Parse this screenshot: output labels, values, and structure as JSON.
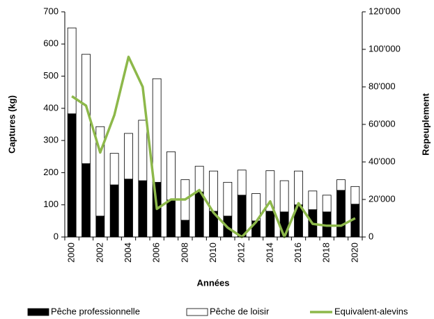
{
  "chart_data": {
    "type": "bar",
    "stacked": true,
    "xlabel": "Années",
    "ylabel": "Captures (kg)",
    "y2label": "Repeuplement",
    "categories": [
      "2000",
      null,
      "2002",
      null,
      "2004",
      null,
      "2006",
      null,
      "2008",
      null,
      "2010",
      null,
      "2012",
      null,
      "2014",
      null,
      "2016",
      null,
      "2018",
      null,
      "2020"
    ],
    "series": [
      {
        "name": "Pêche professionnelle",
        "color": "#000000",
        "type": "bar",
        "values": [
          383,
          228,
          65,
          162,
          180,
          175,
          170,
          115,
          52,
          140,
          80,
          65,
          130,
          50,
          80,
          78,
          100,
          85,
          78,
          145,
          102
        ]
      },
      {
        "name": "Pêche de loisir",
        "color": "#ffffff",
        "type": "bar",
        "values": [
          267,
          340,
          278,
          98,
          142,
          188,
          322,
          150,
          126,
          80,
          125,
          105,
          78,
          85,
          126,
          97,
          105,
          58,
          52,
          33,
          55
        ]
      },
      {
        "name": "Equivalent-alevins",
        "color": "#8db84a",
        "type": "line",
        "axis": "y2",
        "values": [
          75000,
          70000,
          45000,
          65000,
          96000,
          80000,
          15000,
          20000,
          20000,
          25000,
          13000,
          5000,
          0,
          8000,
          19000,
          0,
          18000,
          7000,
          6000,
          6000,
          10000
        ]
      }
    ],
    "ylim": [
      0,
      700
    ],
    "yticks": [
      0,
      100,
      200,
      300,
      400,
      500,
      600,
      700
    ],
    "y2lim": [
      0,
      120000
    ],
    "y2ticks": [
      0,
      {
        "value": 20000,
        "label": "20'000"
      },
      {
        "value": 40000,
        "label": "40'000"
      },
      {
        "value": 60000,
        "label": "60'000"
      },
      {
        "value": 80000,
        "label": "80'000"
      },
      {
        "value": 100000,
        "label": "100'000"
      },
      {
        "value": 120000,
        "label": "120'000"
      }
    ],
    "legend": "bottom"
  }
}
